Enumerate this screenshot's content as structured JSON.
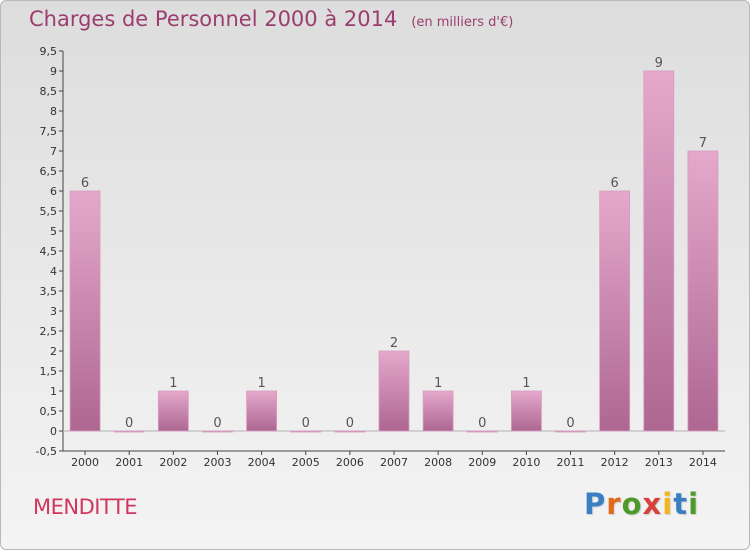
{
  "title": "Charges de Personnel 2000 à 2014",
  "unit_note": "(en milliers d'€)",
  "commune": "MENDITTE",
  "logo": {
    "text": "Proxiti",
    "letter_colors": [
      "#3a7fc4",
      "#e2681c",
      "#4c9a2a",
      "#d8403a",
      "#f2b51c",
      "#3a7fc4",
      "#4c9a2a"
    ]
  },
  "colors": {
    "title": "#9b3e6f",
    "commune": "#d1365e",
    "bar_top": "#e5a8cb",
    "bar_bottom": "#ad6791",
    "axis_text": "#333333"
  },
  "chart_data": {
    "type": "bar",
    "title": "Charges de Personnel 2000 à 2014",
    "subtitle": "(en milliers d'€)",
    "xlabel": "",
    "ylabel": "",
    "categories": [
      "2000",
      "2001",
      "2002",
      "2003",
      "2004",
      "2005",
      "2006",
      "2007",
      "2008",
      "2009",
      "2010",
      "2011",
      "2012",
      "2013",
      "2014"
    ],
    "values": [
      6,
      0,
      1,
      0,
      1,
      0,
      0,
      2,
      1,
      0,
      1,
      0,
      6,
      9,
      7
    ],
    "data_labels": [
      "6",
      "0",
      "1",
      "0",
      "1",
      "0",
      "0",
      "2",
      "1",
      "0",
      "1",
      "0",
      "6",
      "9",
      "7"
    ],
    "ylim": [
      -0.5,
      9.5
    ],
    "y_ticks": [
      -0.5,
      0,
      0.5,
      1,
      1.5,
      2,
      2.5,
      3,
      3.5,
      4,
      4.5,
      5,
      5.5,
      6,
      6.5,
      7,
      7.5,
      8,
      8.5,
      9,
      9.5
    ],
    "y_tick_labels": [
      "-0,5",
      "0",
      "0,5",
      "1",
      "1,5",
      "2",
      "2,5",
      "3",
      "3,5",
      "4",
      "4,5",
      "5",
      "5,5",
      "6",
      "6,5",
      "7",
      "7,5",
      "8",
      "8,5",
      "9",
      "9,5"
    ],
    "grid": false
  }
}
